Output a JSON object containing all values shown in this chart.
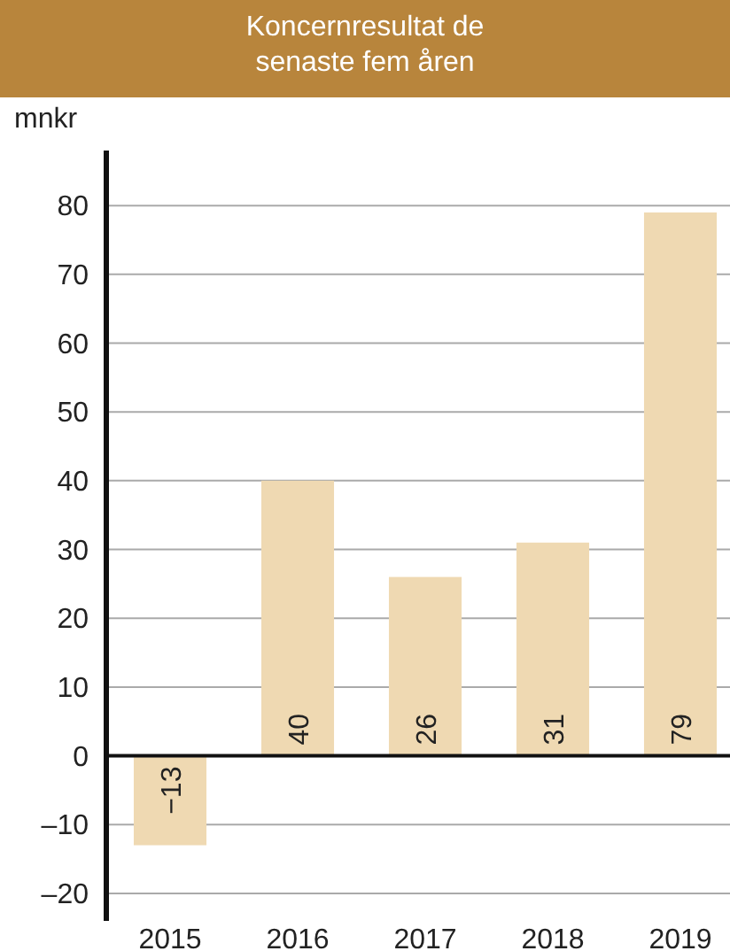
{
  "chart_data": {
    "type": "bar",
    "title": "Koncernresultat de senaste fem åren",
    "ylabel": "mnkr",
    "categories": [
      "2015",
      "2016",
      "2017",
      "2018",
      "2019"
    ],
    "values": [
      -13,
      40,
      26,
      31,
      79
    ],
    "value_labels": [
      "−13",
      "40",
      "26",
      "31",
      "79"
    ],
    "color": "#efd9b2",
    "ylim": [
      -24,
      88
    ],
    "yticks": [
      {
        "value": -20,
        "label": "–20"
      },
      {
        "value": -10,
        "label": "–10"
      },
      0,
      10,
      20,
      30,
      40,
      50,
      60,
      70,
      80
    ],
    "grid": "y"
  }
}
